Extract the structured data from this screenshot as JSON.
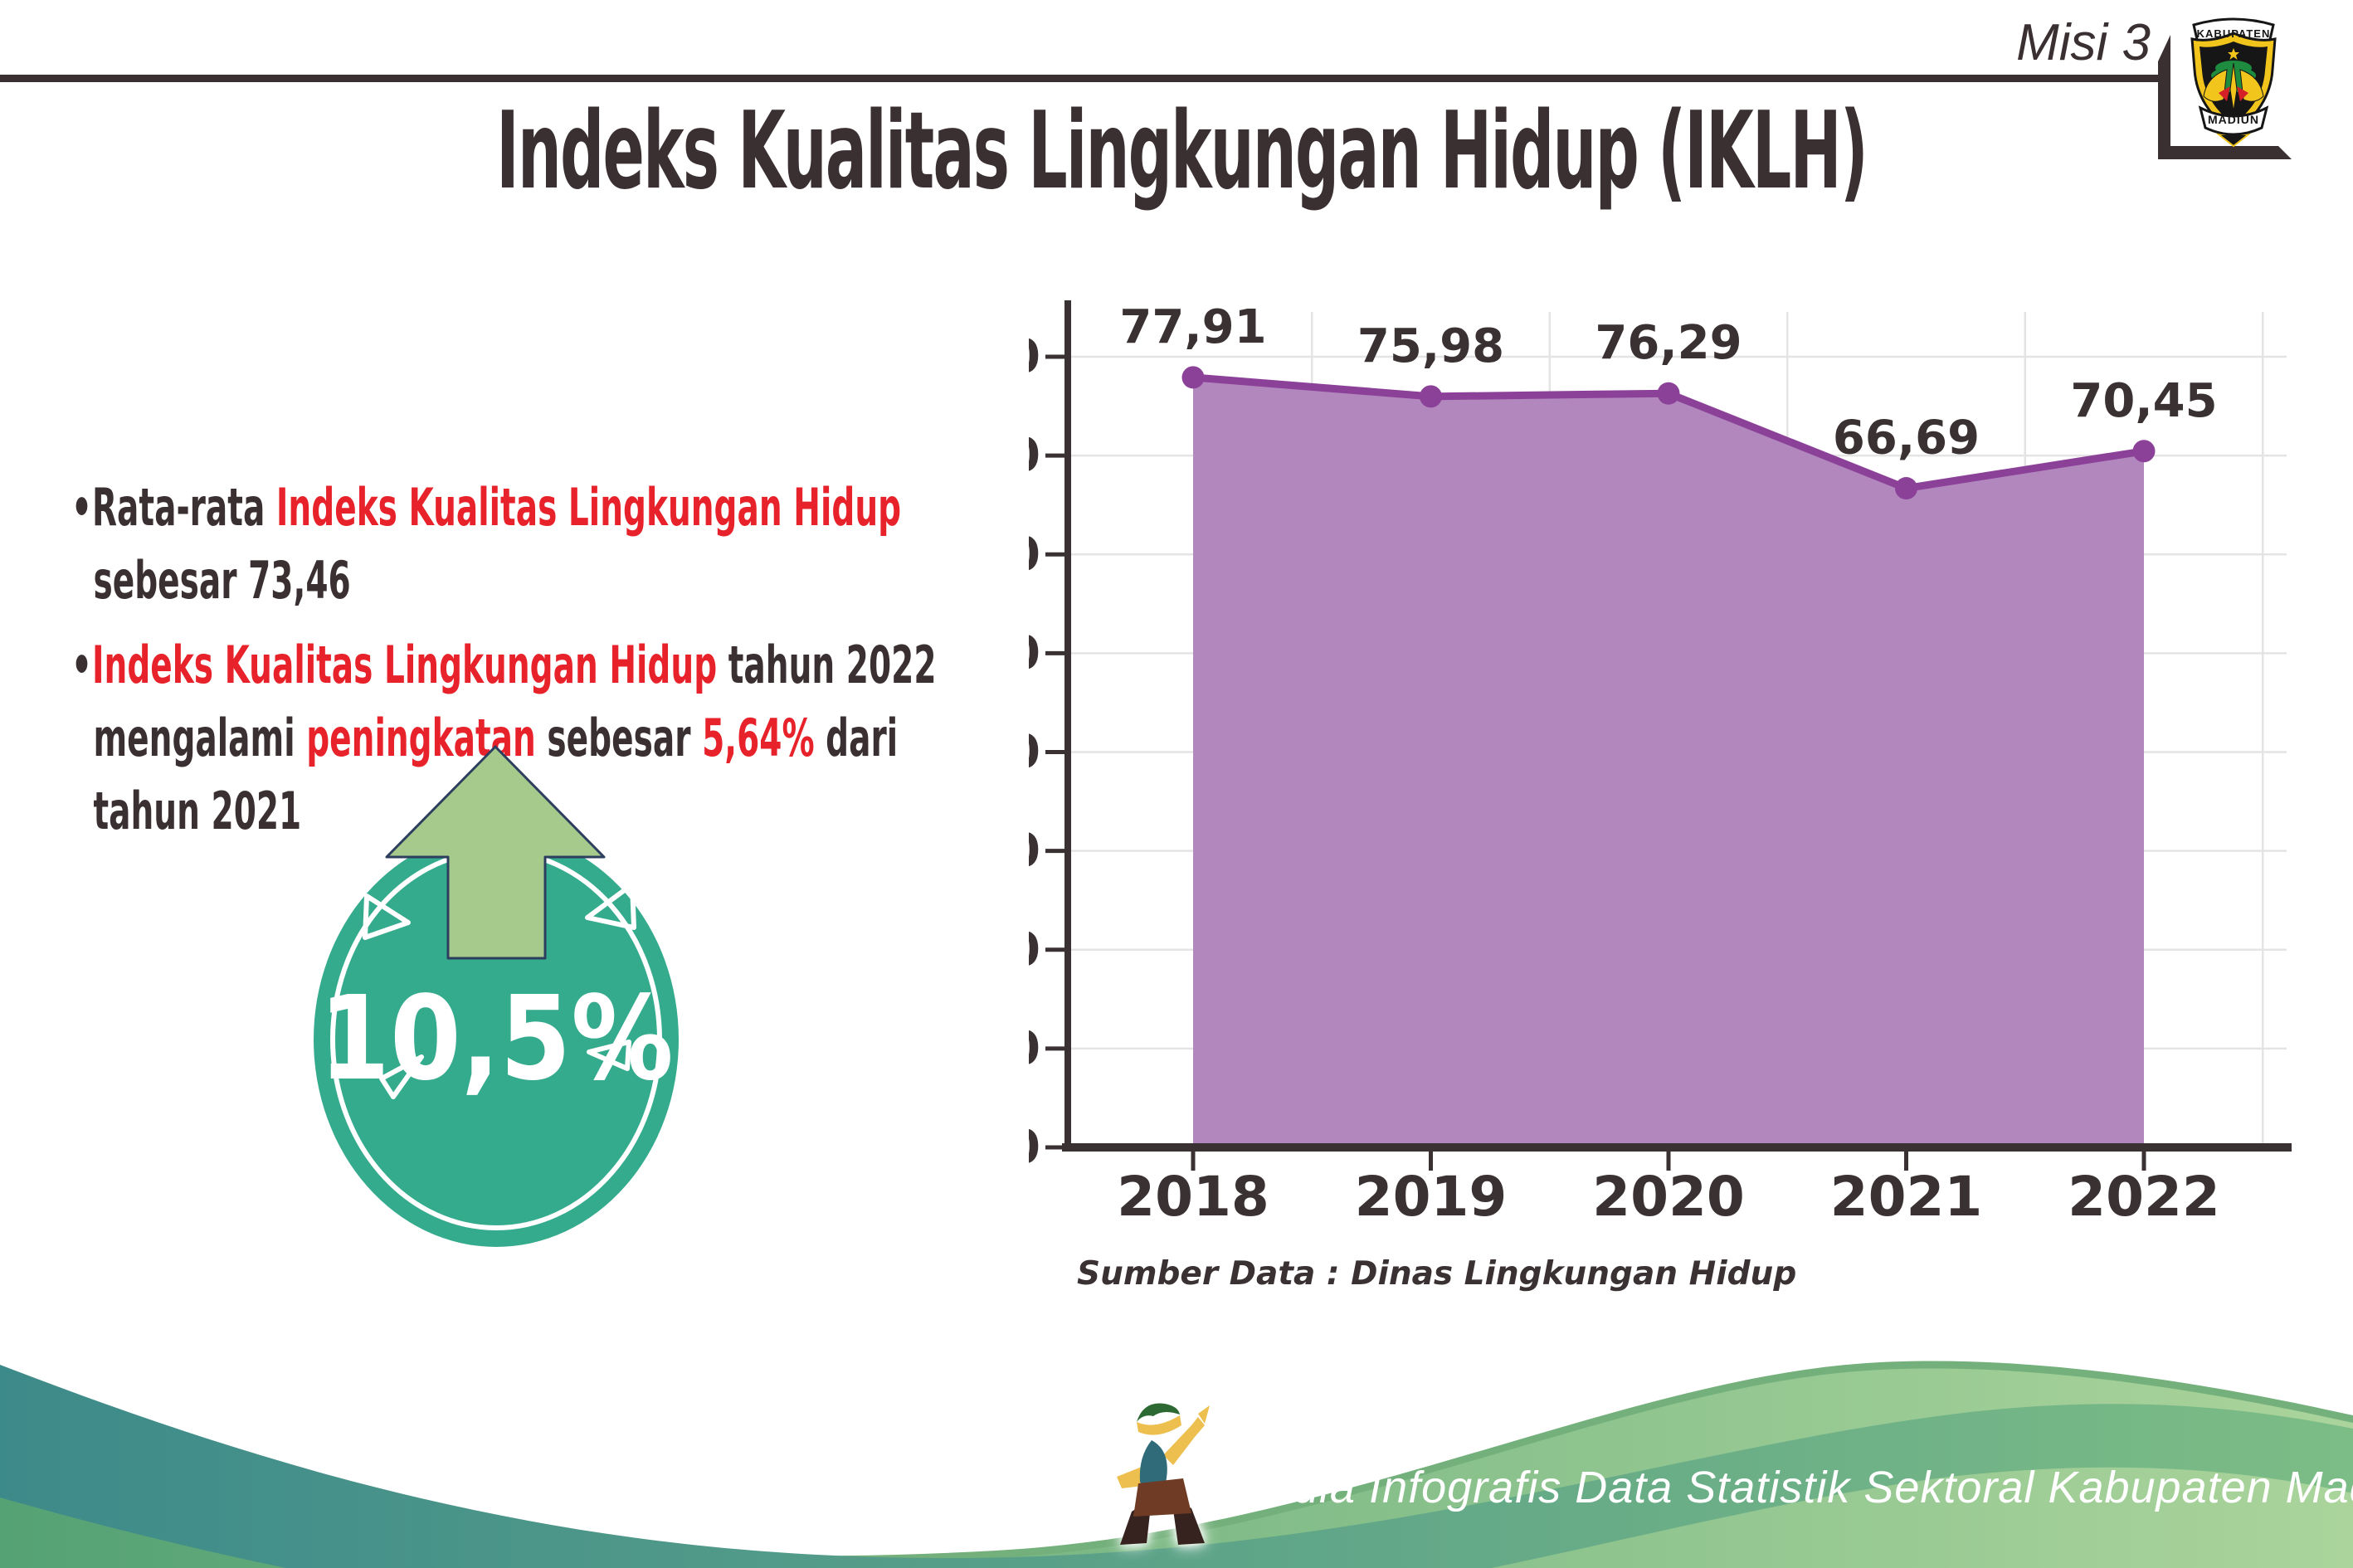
{
  "header": {
    "misi_label": "Misi 3",
    "title": "Indeks Kualitas Lingkungan Hidup (IKLH)"
  },
  "logo": {
    "name": "Lambang Kabupaten Madiun",
    "top_text": "KABUPATEN",
    "bottom_text": "MADIUN"
  },
  "bullet_char": "•",
  "bullets": [
    {
      "lines": [
        {
          "segments": [
            {
              "text": "Rata-rata "
            },
            {
              "text": "Indeks Kualitas Lingkungan Hidup"
            }
          ]
        },
        {
          "segments": [
            {
              "text": "sebesar 73,46"
            }
          ]
        }
      ]
    },
    {
      "lines": [
        {
          "segments": [
            {
              "text": "Indeks Kualitas Lingkungan Hidup"
            },
            {
              "text": " tahun 2022"
            }
          ]
        },
        {
          "segments": [
            {
              "text": "mengalami "
            },
            {
              "text": "peningkatan"
            },
            {
              "text": " sebesar "
            },
            {
              "text": "5,64%"
            },
            {
              "text": " dari"
            }
          ]
        },
        {
          "segments": [
            {
              "text": "tahun 2021"
            }
          ]
        }
      ]
    }
  ],
  "badge": {
    "value": "10,5%"
  },
  "chart_data": {
    "type": "area",
    "title": "",
    "categories": [
      "2018",
      "2019",
      "2020",
      "2021",
      "2022"
    ],
    "values": [
      77.91,
      75.98,
      76.29,
      66.69,
      70.45
    ],
    "data_labels": [
      "77,91",
      "75,98",
      "76,29",
      "66,69",
      "70,45"
    ],
    "xlabel": "",
    "ylabel": "",
    "ylim": [
      0,
      80
    ],
    "ytick_step": 10,
    "grid": true,
    "legend": false,
    "source_note": "Sumber Data : Dinas Lingkungan Hidup",
    "colors": {
      "fill": "#b287be",
      "line": "#8c4198",
      "marker": "#8c4198",
      "axis": "#3a3132",
      "grid": "#e4e4e4",
      "label": "#3a3132"
    }
  },
  "footer": {
    "credit": "Media Infografis Data Statistik Sektoral Kabupaten Madiun |",
    "colors": {
      "wave_teal_left": "#3d8a8a",
      "wave_teal_right": "#7cbc86",
      "wave_green_left": "#55a274",
      "wave_green_right": "#aad49b",
      "wave_rim": "#74b07b"
    }
  },
  "colors": {
    "text_dark": "#3a3032",
    "accent_red": "#e7222a",
    "badge_teal": "#35ab8e",
    "arrow_green": "#a6ca8c",
    "arrow_outline": "#2d3e5f"
  }
}
